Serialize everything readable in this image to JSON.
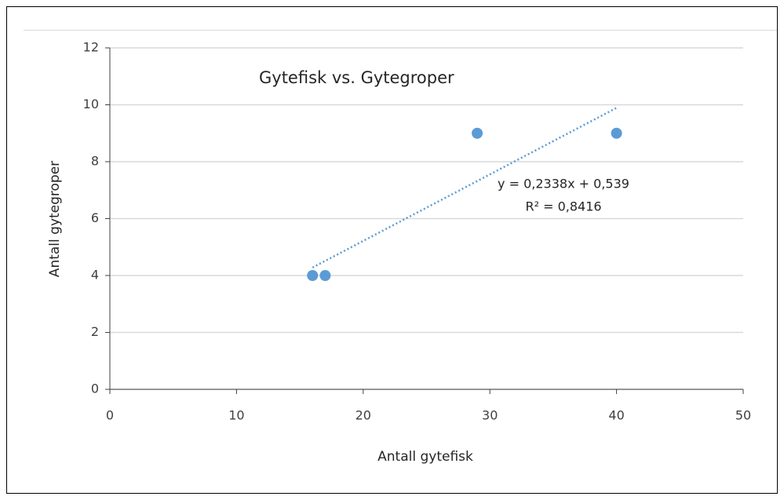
{
  "chart_data": {
    "type": "scatter",
    "title": "Gytefisk vs. Gytegroper",
    "x_label": "Antall gytefisk",
    "y_label": "Antall gytegroper",
    "x": [
      16,
      17,
      29,
      40
    ],
    "values": [
      4,
      4,
      9,
      9
    ],
    "color": "#5b9bd5",
    "xlim": [
      0,
      50
    ],
    "xticks": [
      0,
      10,
      20,
      30,
      40,
      50
    ],
    "ylim": [
      0,
      12
    ],
    "yticks": [
      0,
      2,
      4,
      6,
      8,
      10,
      12
    ],
    "grid": true,
    "trendline": {
      "equation": "y = 0,2338x + 0,539",
      "r_squared": "R² = 0,8416",
      "slope": 0.2338,
      "intercept": 0.539
    }
  }
}
